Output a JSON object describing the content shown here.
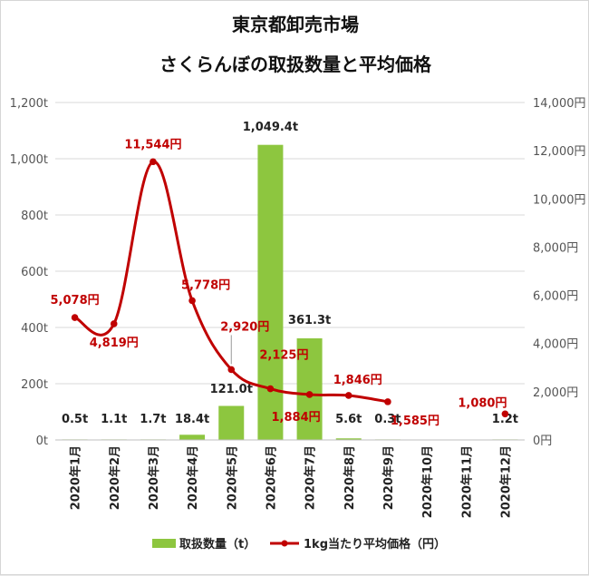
{
  "chart_data": {
    "type": "bar",
    "title": "東京都卸売市場",
    "subtitle": "さくらんぼの取扱数量と平均価格",
    "categories": [
      "2020年1月",
      "2020年2月",
      "2020年3月",
      "2020年4月",
      "2020年5月",
      "2020年6月",
      "2020年7月",
      "2020年8月",
      "2020年9月",
      "2020年10月",
      "2020年11月",
      "2020年12月"
    ],
    "ylim_left": [
      0,
      1200
    ],
    "ylim_right": [
      0,
      14000
    ],
    "left_ticks": [
      {
        "value": 0,
        "label": "0t"
      },
      {
        "value": 200,
        "label": "200t"
      },
      {
        "value": 400,
        "label": "400t"
      },
      {
        "value": 600,
        "label": "600t"
      },
      {
        "value": 800,
        "label": "800t"
      },
      {
        "value": 1000,
        "label": "1,000t"
      },
      {
        "value": 1200,
        "label": "1,200t"
      }
    ],
    "right_ticks": [
      {
        "value": 0,
        "label": "0円"
      },
      {
        "value": 2000,
        "label": "2,000円"
      },
      {
        "value": 4000,
        "label": "4,000円"
      },
      {
        "value": 6000,
        "label": "6,000円"
      },
      {
        "value": 8000,
        "label": "8,000円"
      },
      {
        "value": 10000,
        "label": "10,000円"
      },
      {
        "value": 12000,
        "label": "12,000円"
      },
      {
        "value": 14000,
        "label": "14,000円"
      }
    ],
    "grid": true,
    "legend_position": "bottom",
    "series": [
      {
        "name": "取扱数量（t）",
        "type": "bar",
        "axis": "left",
        "color": "#8dc63f",
        "values": [
          0.5,
          1.1,
          1.7,
          18.4,
          121.0,
          1049.4,
          361.3,
          5.6,
          0.3,
          null,
          null,
          1.2
        ],
        "labels": [
          "0.5t",
          "1.1t",
          "1.7t",
          "18.4t",
          "121.0t",
          "1,049.4t",
          "361.3t",
          "5.6t",
          "0.3t",
          null,
          null,
          "1.2t"
        ]
      },
      {
        "name": "1kg当たり平均価格（円）",
        "type": "line",
        "axis": "right",
        "color": "#c00000",
        "values": [
          5078,
          4819,
          11544,
          5778,
          2920,
          2125,
          1884,
          1846,
          1585,
          null,
          null,
          1080
        ],
        "labels": [
          "5,078円",
          "4,819円",
          "11,544円",
          "5,778円",
          "2,920円",
          "2,125円",
          "1,884円",
          "1,846円",
          "1,585円",
          null,
          null,
          "1,080円"
        ]
      }
    ]
  }
}
